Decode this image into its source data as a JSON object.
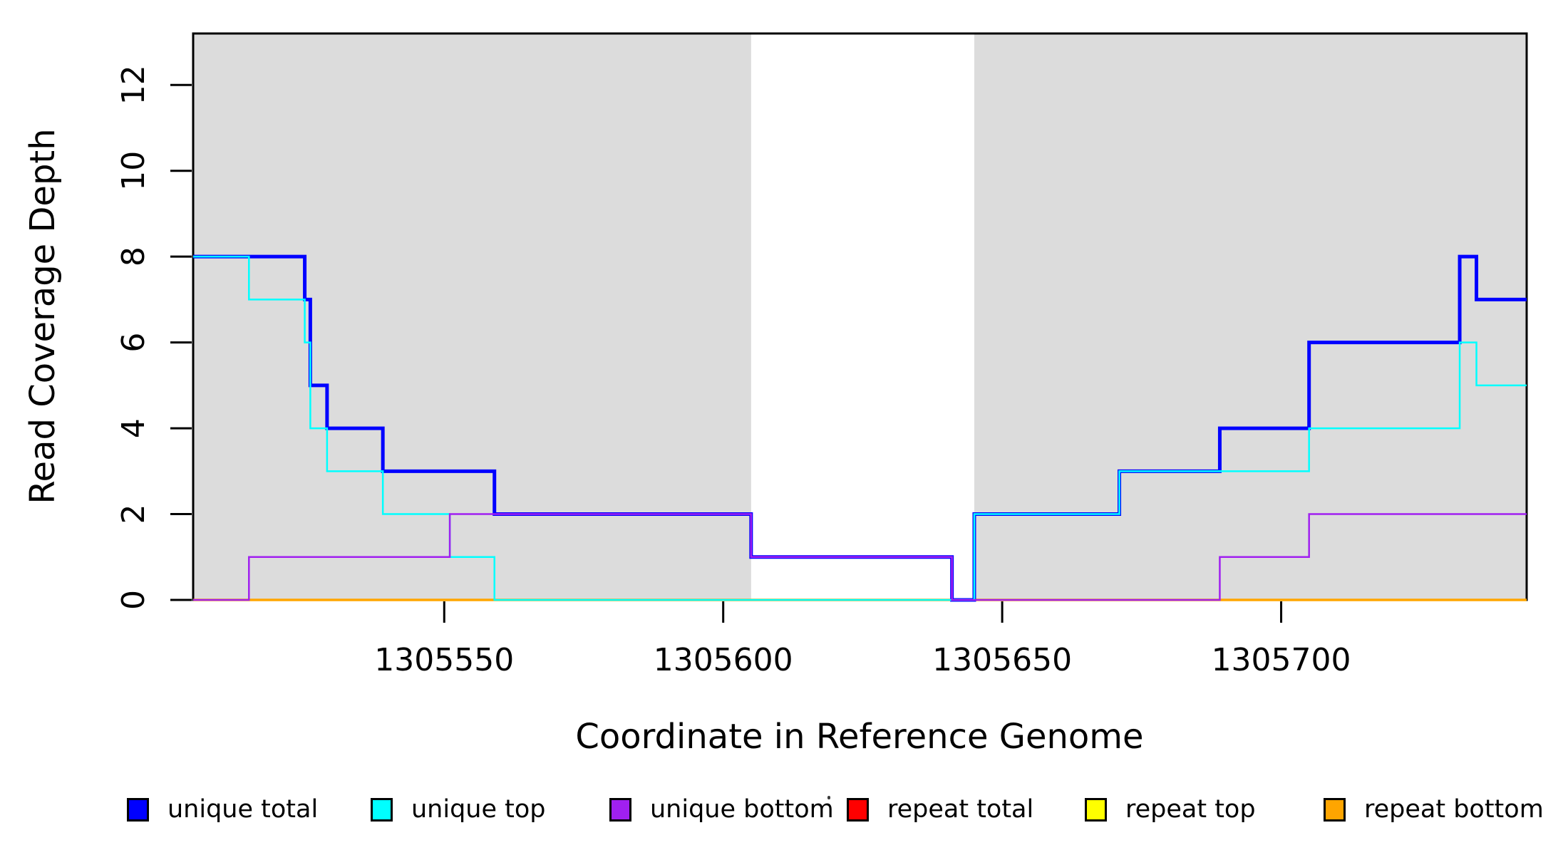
{
  "chart_data": {
    "type": "line",
    "subtype": "step-post",
    "title": "",
    "xlabel": "Coordinate in Reference Genome",
    "ylabel": "Read Coverage Depth",
    "x_domain": [
      1305505,
      1305744
    ],
    "y_domain": [
      0,
      13.2
    ],
    "x_ticks": [
      "1305550",
      "1305600",
      "1305650",
      "1305700"
    ],
    "y_ticks": [
      "0",
      "2",
      "4",
      "6",
      "8",
      "10",
      "12"
    ],
    "grid": false,
    "legend_position": "bottom",
    "shade_color": "#DCDCDC",
    "shaded_regions": [
      {
        "x0": 1305505,
        "x1": 1305605
      },
      {
        "x0": 1305645,
        "x1": 1305744
      }
    ],
    "series": [
      {
        "name": "repeat total",
        "color": "#FF0000",
        "line_width": 2.5,
        "points": [
          [
            1305505,
            0
          ]
        ]
      },
      {
        "name": "repeat top",
        "color": "#FFFF00",
        "line_width": 2.5,
        "points": [
          [
            1305505,
            0
          ]
        ]
      },
      {
        "name": "repeat bottom",
        "color": "#FFA500",
        "line_width": 3.5,
        "points": [
          [
            1305505,
            0
          ]
        ]
      },
      {
        "name": "unique total",
        "color": "#0000FF",
        "line_width": 5,
        "points": [
          [
            1305505,
            8
          ],
          [
            1305525,
            7
          ],
          [
            1305526,
            5
          ],
          [
            1305529,
            4
          ],
          [
            1305539,
            3
          ],
          [
            1305559,
            2
          ],
          [
            1305605,
            1
          ],
          [
            1305641,
            0
          ],
          [
            1305645,
            2
          ],
          [
            1305671,
            3
          ],
          [
            1305689,
            4
          ],
          [
            1305705,
            6
          ],
          [
            1305732,
            8
          ],
          [
            1305735,
            7
          ]
        ]
      },
      {
        "name": "unique top",
        "color": "#00FFFF",
        "line_width": 2.5,
        "points": [
          [
            1305505,
            8
          ],
          [
            1305515,
            7
          ],
          [
            1305525,
            6
          ],
          [
            1305526,
            4
          ],
          [
            1305529,
            3
          ],
          [
            1305539,
            2
          ],
          [
            1305551,
            1
          ],
          [
            1305559,
            0
          ],
          [
            1305645,
            2
          ],
          [
            1305671,
            3
          ],
          [
            1305705,
            4
          ],
          [
            1305732,
            6
          ],
          [
            1305735,
            5
          ]
        ]
      },
      {
        "name": "unique bottom",
        "color": "#A020F0",
        "line_width": 2.5,
        "points": [
          [
            1305505,
            0
          ],
          [
            1305515,
            1
          ],
          [
            1305551,
            2
          ],
          [
            1305605,
            1
          ],
          [
            1305641,
            0
          ],
          [
            1305689,
            1
          ],
          [
            1305705,
            2
          ]
        ]
      }
    ],
    "legend": [
      {
        "label": "unique total",
        "color": "#0000FF"
      },
      {
        "label": "unique top",
        "color": "#00FFFF"
      },
      {
        "label": "unique bottom",
        "color": "#A020F0"
      },
      {
        "label": "repeat total",
        "color": "#FF0000"
      },
      {
        "label": "repeat top",
        "color": "#FFFF00"
      },
      {
        "label": "repeat bottom",
        "color": "#FFA500"
      }
    ]
  }
}
